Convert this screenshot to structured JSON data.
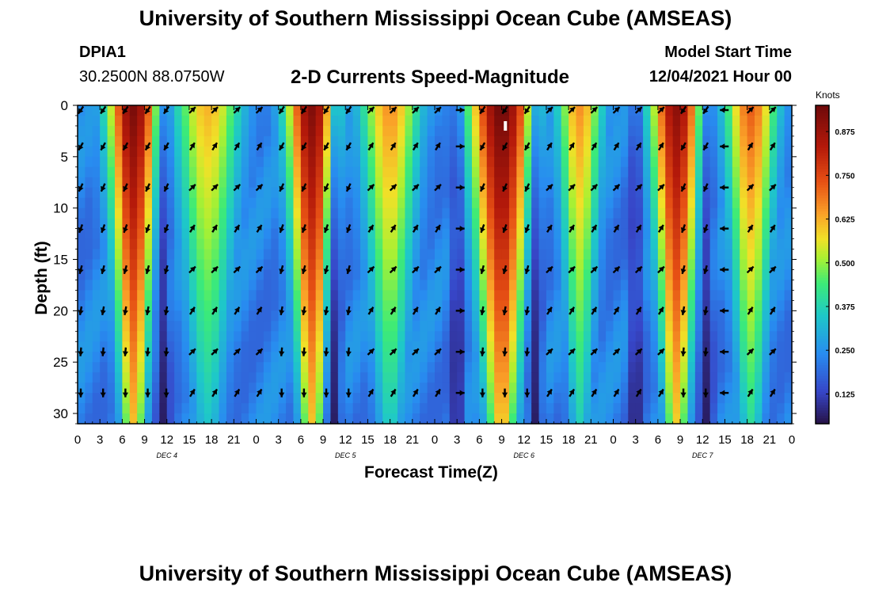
{
  "header": {
    "title": "University of Southern Mississippi Ocean Cube (AMSEAS)",
    "station_id": "DPIA1",
    "coordinates": "30.2500N  88.0750W",
    "subtitle": "2-D Currents Speed-Magnitude",
    "model_start_label": "Model Start Time",
    "model_start_value": "12/04/2021 Hour 00"
  },
  "footer": {
    "title": "University of Southern Mississippi Ocean Cube (AMSEAS)"
  },
  "chart_data": {
    "type": "heatmap",
    "xlabel": "Forecast Time(Z)",
    "ylabel": "Depth (ft)",
    "xlim": [
      0,
      96
    ],
    "ylim": [
      0,
      31
    ],
    "x_tick_labels": [
      "0",
      "3",
      "6",
      "9",
      "12",
      "15",
      "18",
      "21",
      "0",
      "3",
      "6",
      "9",
      "12",
      "15",
      "18",
      "21",
      "0",
      "3",
      "6",
      "9",
      "12",
      "15",
      "18",
      "21",
      "0",
      "3",
      "6",
      "9",
      "12",
      "15",
      "18",
      "21",
      "0"
    ],
    "y_ticks": [
      0,
      5,
      10,
      15,
      20,
      25,
      30
    ],
    "y_tick_labels": [
      "0",
      "5",
      "10",
      "15",
      "20",
      "25",
      "30"
    ],
    "day_labels": [
      {
        "label": "DEC 4",
        "hour": 12
      },
      {
        "label": "DEC 5",
        "hour": 36
      },
      {
        "label": "DEC 6",
        "hour": 60
      },
      {
        "label": "DEC 7",
        "hour": 84
      }
    ],
    "colorbar": {
      "units": "Knots",
      "range": [
        0.04,
        0.95
      ],
      "ticks": [
        "0.125",
        "0.250",
        "0.375",
        "0.500",
        "0.625",
        "0.750",
        "0.875"
      ],
      "tick_values": [
        0.125,
        0.25,
        0.375,
        0.5,
        0.625,
        0.75,
        0.875
      ]
    },
    "speed_bands": [
      {
        "center_hour": 7.5,
        "half_width_hours": 3.5,
        "peak_knots": 0.93,
        "description": "ebb maximum"
      },
      {
        "center_hour": 17.5,
        "half_width_hours": 4.5,
        "peak_knots": 0.62,
        "description": "flood maximum"
      },
      {
        "center_hour": 31.5,
        "half_width_hours": 3.5,
        "peak_knots": 0.92,
        "description": "ebb maximum"
      },
      {
        "center_hour": 42.0,
        "half_width_hours": 4.0,
        "peak_knots": 0.66,
        "description": "flood maximum"
      },
      {
        "center_hour": 57.0,
        "half_width_hours": 4.5,
        "peak_knots": 0.95,
        "description": "ebb maximum"
      },
      {
        "center_hour": 67.5,
        "half_width_hours": 3.0,
        "peak_knots": 0.66,
        "description": "flood maximum"
      },
      {
        "center_hour": 80.5,
        "half_width_hours": 3.5,
        "peak_knots": 0.9,
        "description": "ebb maximum"
      },
      {
        "center_hour": 90.5,
        "half_width_hours": 3.5,
        "peak_knots": 0.72,
        "description": "flood maximum"
      }
    ],
    "slack_hours": [
      11.5,
      34.5,
      51.0,
      61.5,
      75.0,
      84.5
    ],
    "vector_rows_depth_ft": [
      0,
      4,
      8,
      12,
      16,
      20,
      24,
      28
    ],
    "vector_columns_hours": [
      0,
      3,
      6,
      9,
      11.5,
      15,
      18,
      21,
      24,
      27,
      30,
      33,
      36,
      39,
      42,
      45,
      48,
      51,
      54,
      57,
      60,
      63,
      66,
      69,
      72,
      75,
      78,
      81,
      84,
      86.5,
      90,
      93
    ],
    "vector_directions": [
      "ebb",
      "ebb",
      "ebb",
      "ebb",
      "ebb",
      "flood",
      "flood",
      "flood",
      "flood",
      "ebb",
      "ebb",
      "ebb",
      "ebb",
      "flood",
      "flood",
      "flood",
      "flood",
      "east",
      "ebb",
      "ebb",
      "ebb",
      "flood",
      "flood",
      "flood",
      "flood",
      "flood",
      "flood",
      "ebb",
      "ebb",
      "west",
      "flood",
      "flood"
    ],
    "current_time_hour": 57.5
  }
}
